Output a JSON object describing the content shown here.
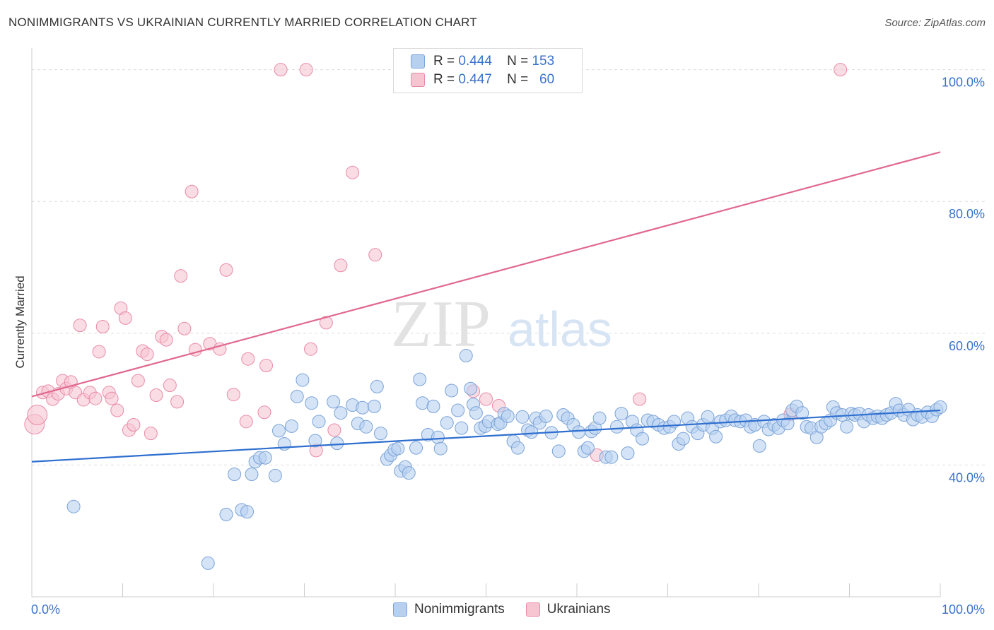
{
  "title": "NONIMMIGRANTS VS UKRAINIAN CURRENTLY MARRIED CORRELATION CHART",
  "source": "Source: ZipAtlas.com",
  "watermark": {
    "zip": "ZIP",
    "atlas": "atlas"
  },
  "legend": {
    "rows": [
      {
        "r_label": "R =",
        "r_value": "0.444",
        "n_label": "N =",
        "n_value": "153"
      },
      {
        "r_label": "R =",
        "r_value": "0.447",
        "n_label": "N =",
        "n_value": "60"
      }
    ]
  },
  "colors": {
    "blue_fill": "#b8d0f0",
    "blue_stroke": "#7aa3d8",
    "blue_line": "#2e6fcf",
    "pink_fill": "#f7c4d2",
    "pink_stroke": "#e98aa7",
    "pink_line": "#e0688f",
    "tick_text": "#3a73c9",
    "grid": "#dddddd"
  },
  "chart_data": {
    "type": "scatter",
    "title": "NONIMMIGRANTS VS UKRAINIAN CURRENTLY MARRIED CORRELATION CHART",
    "xlabel": "",
    "ylabel": "Currently Married",
    "xlim": [
      0,
      100
    ],
    "ylim": [
      20,
      102
    ],
    "x_tick_labels": [
      "0.0%",
      "100.0%"
    ],
    "y_ticks": [
      {
        "value": 40,
        "label": "40.0%"
      },
      {
        "value": 60,
        "label": "60.0%"
      },
      {
        "value": 80,
        "label": "80.0%"
      },
      {
        "value": 100,
        "label": "100.0%"
      }
    ],
    "grid": true,
    "legend_position": "top-center",
    "series": [
      {
        "name": "Nonimmigrants",
        "color": "#7aa3d8",
        "trend": {
          "x": [
            0,
            100
          ],
          "y": [
            40.5,
            48.3
          ]
        },
        "points": [
          [
            4.6,
            33.7
          ],
          [
            19.4,
            25.1
          ],
          [
            21.4,
            32.5
          ],
          [
            22.3,
            38.6
          ],
          [
            23.1,
            33.2
          ],
          [
            23.7,
            32.9
          ],
          [
            24.2,
            38.6
          ],
          [
            24.6,
            40.5
          ],
          [
            25.1,
            41.1
          ],
          [
            25.7,
            41.1
          ],
          [
            26.8,
            38.4
          ],
          [
            27.2,
            45.2
          ],
          [
            27.8,
            43.2
          ],
          [
            28.6,
            45.9
          ],
          [
            29.2,
            50.4
          ],
          [
            29.8,
            52.9
          ],
          [
            30.8,
            49.4
          ],
          [
            31.2,
            43.7
          ],
          [
            31.6,
            46.6
          ],
          [
            33.2,
            49.6
          ],
          [
            33.6,
            43.3
          ],
          [
            34.0,
            47.9
          ],
          [
            35.3,
            49.1
          ],
          [
            35.9,
            46.3
          ],
          [
            36.4,
            48.7
          ],
          [
            36.8,
            45.8
          ],
          [
            37.7,
            48.9
          ],
          [
            38.0,
            51.9
          ],
          [
            38.4,
            44.8
          ],
          [
            39.1,
            40.9
          ],
          [
            39.5,
            41.5
          ],
          [
            39.9,
            42.3
          ],
          [
            40.3,
            42.5
          ],
          [
            40.6,
            39.1
          ],
          [
            41.1,
            39.7
          ],
          [
            41.5,
            38.8
          ],
          [
            42.3,
            42.6
          ],
          [
            42.7,
            53.0
          ],
          [
            43.0,
            49.4
          ],
          [
            43.6,
            44.6
          ],
          [
            44.2,
            48.9
          ],
          [
            44.7,
            44.2
          ],
          [
            45.0,
            42.5
          ],
          [
            45.7,
            46.4
          ],
          [
            46.2,
            51.3
          ],
          [
            46.9,
            48.3
          ],
          [
            47.3,
            45.6
          ],
          [
            47.8,
            56.6
          ],
          [
            48.3,
            51.6
          ],
          [
            48.6,
            49.2
          ],
          [
            48.9,
            47.9
          ],
          [
            49.4,
            45.6
          ],
          [
            49.9,
            45.9
          ],
          [
            50.3,
            46.6
          ],
          [
            51.3,
            46.2
          ],
          [
            51.6,
            46.4
          ],
          [
            52.0,
            47.8
          ],
          [
            52.4,
            47.4
          ],
          [
            53.0,
            43.6
          ],
          [
            53.5,
            42.6
          ],
          [
            54.0,
            47.3
          ],
          [
            54.6,
            45.3
          ],
          [
            55.0,
            45.0
          ],
          [
            55.5,
            47.1
          ],
          [
            55.9,
            46.4
          ],
          [
            56.6,
            47.4
          ],
          [
            57.2,
            44.9
          ],
          [
            58.0,
            42.1
          ],
          [
            58.5,
            47.6
          ],
          [
            59.0,
            47.1
          ],
          [
            59.6,
            46.1
          ],
          [
            60.2,
            45.0
          ],
          [
            60.8,
            42.1
          ],
          [
            61.2,
            42.6
          ],
          [
            61.6,
            45.1
          ],
          [
            62.0,
            45.6
          ],
          [
            62.5,
            47.1
          ],
          [
            63.2,
            41.2
          ],
          [
            63.8,
            41.2
          ],
          [
            64.4,
            45.8
          ],
          [
            64.9,
            47.8
          ],
          [
            65.6,
            41.8
          ],
          [
            66.1,
            46.6
          ],
          [
            66.6,
            45.3
          ],
          [
            67.2,
            44.0
          ],
          [
            67.8,
            46.8
          ],
          [
            68.4,
            46.6
          ],
          [
            69.0,
            46.1
          ],
          [
            69.6,
            45.6
          ],
          [
            70.2,
            45.8
          ],
          [
            70.7,
            46.6
          ],
          [
            71.2,
            43.2
          ],
          [
            71.7,
            44.0
          ],
          [
            72.2,
            47.1
          ],
          [
            72.7,
            45.8
          ],
          [
            73.3,
            44.8
          ],
          [
            73.9,
            46.1
          ],
          [
            74.4,
            47.3
          ],
          [
            74.9,
            45.6
          ],
          [
            75.3,
            44.3
          ],
          [
            75.8,
            46.6
          ],
          [
            76.4,
            46.8
          ],
          [
            77.0,
            47.4
          ],
          [
            77.4,
            46.8
          ],
          [
            78.0,
            46.6
          ],
          [
            78.6,
            46.8
          ],
          [
            79.1,
            45.8
          ],
          [
            79.6,
            46.1
          ],
          [
            80.1,
            42.9
          ],
          [
            80.6,
            46.6
          ],
          [
            81.1,
            45.4
          ],
          [
            81.7,
            46.1
          ],
          [
            82.2,
            45.6
          ],
          [
            82.7,
            46.8
          ],
          [
            83.2,
            46.3
          ],
          [
            83.7,
            48.3
          ],
          [
            84.2,
            48.9
          ],
          [
            84.8,
            47.9
          ],
          [
            85.3,
            45.8
          ],
          [
            85.8,
            45.6
          ],
          [
            86.4,
            44.2
          ],
          [
            86.9,
            45.8
          ],
          [
            87.4,
            46.3
          ],
          [
            87.9,
            46.8
          ],
          [
            88.2,
            48.8
          ],
          [
            88.6,
            47.9
          ],
          [
            89.2,
            47.6
          ],
          [
            89.7,
            45.8
          ],
          [
            90.2,
            47.8
          ],
          [
            90.6,
            47.6
          ],
          [
            91.1,
            47.8
          ],
          [
            91.6,
            46.6
          ],
          [
            92.1,
            47.6
          ],
          [
            92.6,
            47.1
          ],
          [
            93.1,
            47.4
          ],
          [
            93.6,
            47.1
          ],
          [
            94.1,
            47.6
          ],
          [
            94.6,
            47.9
          ],
          [
            95.1,
            49.3
          ],
          [
            95.5,
            48.3
          ],
          [
            96.0,
            47.6
          ],
          [
            96.5,
            48.4
          ],
          [
            97.0,
            46.9
          ],
          [
            97.5,
            47.6
          ],
          [
            98.0,
            47.3
          ],
          [
            98.6,
            48.0
          ],
          [
            99.1,
            47.4
          ],
          [
            99.6,
            48.4
          ],
          [
            100.0,
            48.8
          ]
        ]
      },
      {
        "name": "Ukrainians",
        "color": "#e98aa7",
        "trend": {
          "x": [
            0,
            100
          ],
          "y": [
            50.4,
            87.5
          ]
        },
        "points": [
          [
            0.3,
            46.2
          ],
          [
            0.6,
            47.6
          ],
          [
            1.2,
            51.0
          ],
          [
            1.8,
            51.2
          ],
          [
            2.3,
            50.0
          ],
          [
            2.9,
            50.8
          ],
          [
            3.4,
            52.8
          ],
          [
            3.8,
            51.6
          ],
          [
            4.3,
            52.6
          ],
          [
            4.8,
            51.0
          ],
          [
            5.3,
            61.2
          ],
          [
            5.7,
            49.9
          ],
          [
            6.4,
            51.0
          ],
          [
            7.0,
            50.1
          ],
          [
            7.4,
            57.2
          ],
          [
            7.8,
            61.0
          ],
          [
            8.5,
            51.0
          ],
          [
            8.8,
            50.1
          ],
          [
            9.4,
            48.3
          ],
          [
            9.8,
            63.8
          ],
          [
            10.3,
            62.3
          ],
          [
            10.7,
            45.3
          ],
          [
            11.2,
            46.1
          ],
          [
            11.7,
            52.8
          ],
          [
            12.2,
            57.3
          ],
          [
            12.7,
            56.8
          ],
          [
            13.1,
            44.8
          ],
          [
            13.7,
            50.6
          ],
          [
            14.3,
            59.5
          ],
          [
            14.8,
            59.0
          ],
          [
            15.2,
            52.1
          ],
          [
            16.0,
            49.6
          ],
          [
            16.4,
            68.7
          ],
          [
            16.8,
            60.7
          ],
          [
            17.6,
            81.5
          ],
          [
            18.0,
            57.5
          ],
          [
            19.6,
            58.4
          ],
          [
            20.7,
            57.6
          ],
          [
            21.4,
            69.6
          ],
          [
            22.2,
            50.7
          ],
          [
            23.6,
            46.6
          ],
          [
            23.8,
            56.1
          ],
          [
            25.6,
            48.0
          ],
          [
            25.8,
            55.1
          ],
          [
            27.4,
            100.0
          ],
          [
            30.2,
            100.0
          ],
          [
            30.7,
            57.6
          ],
          [
            31.3,
            42.2
          ],
          [
            32.4,
            61.6
          ],
          [
            33.3,
            45.3
          ],
          [
            34.0,
            70.3
          ],
          [
            35.3,
            84.4
          ],
          [
            37.8,
            71.9
          ],
          [
            48.6,
            51.2
          ],
          [
            50.0,
            50.0
          ],
          [
            51.4,
            49.0
          ],
          [
            62.2,
            41.5
          ],
          [
            66.9,
            50.0
          ],
          [
            83.5,
            47.7
          ],
          [
            89.0,
            100.0
          ]
        ]
      }
    ]
  }
}
